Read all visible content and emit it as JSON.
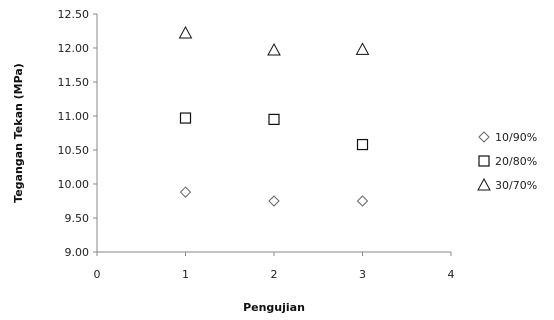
{
  "chart_data": {
    "type": "scatter",
    "xlabel": "Pengujian",
    "ylabel": "Tegangan Tekan  (MPa)",
    "xlim": [
      0,
      4
    ],
    "ylim": [
      9.0,
      12.5
    ],
    "x_ticks": [
      "0",
      "1",
      "2",
      "3",
      "4"
    ],
    "y_ticks": [
      "9.00",
      "9.50",
      "10.00",
      "10.50",
      "11.00",
      "11.50",
      "12.00",
      "12.50"
    ],
    "x_tick_values": [
      0,
      1,
      2,
      3,
      4
    ],
    "y_tick_values": [
      9.0,
      9.5,
      10.0,
      10.5,
      11.0,
      11.5,
      12.0,
      12.5
    ],
    "grid": false,
    "legend_position": "right",
    "series": [
      {
        "name": "10/90%",
        "marker": "diamond",
        "x": [
          1,
          2,
          3
        ],
        "y": [
          9.88,
          9.75,
          9.75
        ]
      },
      {
        "name": "20/80%",
        "marker": "square",
        "x": [
          1,
          2,
          3
        ],
        "y": [
          10.97,
          10.95,
          10.58
        ]
      },
      {
        "name": "30/70%",
        "marker": "triangle",
        "x": [
          1,
          2,
          3
        ],
        "y": [
          12.22,
          11.97,
          11.98
        ]
      }
    ]
  }
}
